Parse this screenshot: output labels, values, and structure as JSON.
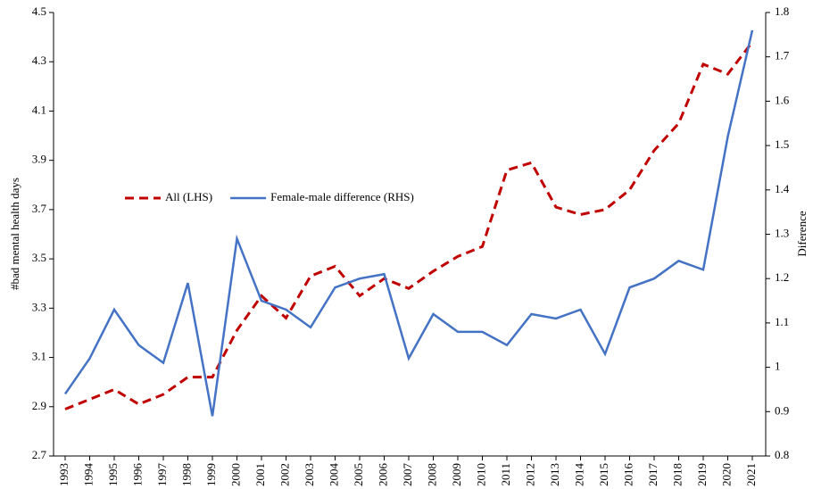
{
  "chart_data": {
    "type": "line",
    "categories": [
      "1993",
      "1994",
      "1995",
      "1996",
      "1997",
      "1998",
      "1999",
      "2000",
      "2001",
      "2002",
      "2003",
      "2004",
      "2005",
      "2006",
      "2007",
      "2008",
      "2009",
      "2010",
      "2011",
      "2012",
      "2013",
      "2014",
      "2015",
      "2016",
      "2017",
      "2018",
      "2019",
      "2020",
      "2021"
    ],
    "series": [
      {
        "name": "All (LHS)",
        "color": "#c00000",
        "dash": true,
        "values": [
          2.89,
          2.93,
          2.97,
          2.91,
          2.95,
          3.02,
          3.02,
          3.21,
          3.35,
          3.26,
          3.43,
          3.47,
          3.35,
          3.42,
          3.38,
          3.45,
          3.51,
          3.55,
          3.86,
          3.89,
          3.71,
          3.68,
          3.7,
          3.78,
          3.94,
          4.05,
          4.29,
          4.25,
          4.38
        ]
      },
      {
        "name": "Female-male difference (RHS)",
        "color": "#4472c4",
        "axis": "y2",
        "values": [
          0.94,
          1.02,
          1.13,
          1.05,
          1.01,
          1.19,
          0.89,
          1.29,
          1.15,
          1.13,
          1.09,
          1.18,
          1.2,
          1.21,
          1.02,
          1.12,
          1.08,
          1.08,
          1.05,
          1.12,
          1.11,
          1.13,
          1.03,
          1.18,
          1.2,
          1.24,
          1.22,
          1.52,
          1.76
        ]
      }
    ],
    "ylabel": "#bad mental health days",
    "y2label": "Diference",
    "ylim": [
      2.7,
      4.5
    ],
    "yticks": [
      2.7,
      2.9,
      3.1,
      3.3,
      3.5,
      3.7,
      3.9,
      4.1,
      4.3,
      4.5
    ],
    "y2lim": [
      0.8,
      1.8
    ],
    "y2ticks": [
      0.8,
      0.9,
      1,
      1.1,
      1.2,
      1.3,
      1.4,
      1.5,
      1.6,
      1.7,
      1.8
    ],
    "legend": "center",
    "grid": false
  }
}
